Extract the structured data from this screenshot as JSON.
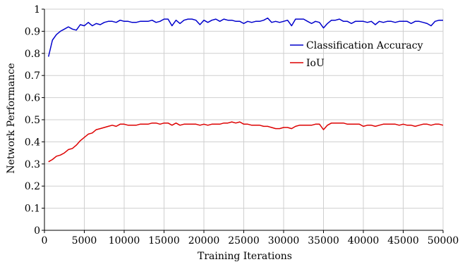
{
  "chart_data": {
    "type": "line",
    "xlabel": "Training Iterations",
    "ylabel": "Network Performance",
    "xlim": [
      0,
      50000
    ],
    "ylim": [
      0,
      1
    ],
    "xticks": [
      0,
      5000,
      10000,
      15000,
      20000,
      25000,
      30000,
      35000,
      40000,
      45000,
      50000
    ],
    "yticks": [
      0,
      0.1,
      0.2,
      0.3,
      0.4,
      0.5,
      0.6,
      0.7,
      0.8,
      0.9,
      1
    ],
    "xtick_labels": [
      "0",
      "5000",
      "10000",
      "15000",
      "20000",
      "25000",
      "30000",
      "35000",
      "40000",
      "45000",
      "50000"
    ],
    "ytick_labels": [
      "0",
      "0.1",
      "0.2",
      "0.3",
      "0.4",
      "0.5",
      "0.6",
      "0.7",
      "0.8",
      "0.9",
      "1"
    ],
    "grid": true,
    "legend_position": "top-right",
    "x": [
      500,
      1000,
      1500,
      2000,
      2500,
      3000,
      3500,
      4000,
      4500,
      5000,
      5500,
      6000,
      6500,
      7000,
      7500,
      8000,
      8500,
      9000,
      9500,
      10000,
      10500,
      11000,
      11500,
      12000,
      12500,
      13000,
      13500,
      14000,
      14500,
      15000,
      15500,
      16000,
      16500,
      17000,
      17500,
      18000,
      18500,
      19000,
      19500,
      20000,
      20500,
      21000,
      21500,
      22000,
      22500,
      23000,
      23500,
      24000,
      24500,
      25000,
      25500,
      26000,
      26500,
      27000,
      27500,
      28000,
      28500,
      29000,
      29500,
      30000,
      30500,
      31000,
      31500,
      32000,
      32500,
      33000,
      33500,
      34000,
      34500,
      35000,
      35500,
      36000,
      36500,
      37000,
      37500,
      38000,
      38500,
      39000,
      39500,
      40000,
      40500,
      41000,
      41500,
      42000,
      42500,
      43000,
      43500,
      44000,
      44500,
      45000,
      45500,
      46000,
      46500,
      47000,
      47500,
      48000,
      48500,
      49000,
      49500,
      50000
    ],
    "series": [
      {
        "name": "Classification Accuracy",
        "color": "#0000cc",
        "values": [
          0.785,
          0.86,
          0.885,
          0.9,
          0.91,
          0.92,
          0.91,
          0.905,
          0.93,
          0.925,
          0.94,
          0.925,
          0.935,
          0.93,
          0.94,
          0.945,
          0.945,
          0.94,
          0.95,
          0.945,
          0.945,
          0.94,
          0.94,
          0.945,
          0.945,
          0.945,
          0.95,
          0.94,
          0.945,
          0.955,
          0.955,
          0.925,
          0.95,
          0.935,
          0.95,
          0.955,
          0.955,
          0.95,
          0.93,
          0.95,
          0.94,
          0.95,
          0.955,
          0.945,
          0.955,
          0.95,
          0.95,
          0.945,
          0.945,
          0.935,
          0.945,
          0.94,
          0.945,
          0.945,
          0.95,
          0.96,
          0.94,
          0.945,
          0.94,
          0.945,
          0.95,
          0.925,
          0.955,
          0.955,
          0.955,
          0.945,
          0.935,
          0.945,
          0.94,
          0.915,
          0.935,
          0.95,
          0.95,
          0.955,
          0.945,
          0.945,
          0.935,
          0.945,
          0.945,
          0.945,
          0.94,
          0.945,
          0.93,
          0.945,
          0.94,
          0.945,
          0.945,
          0.94,
          0.945,
          0.945,
          0.945,
          0.935,
          0.945,
          0.945,
          0.94,
          0.935,
          0.925,
          0.945,
          0.95,
          0.95
        ]
      },
      {
        "name": "IoU",
        "color": "#dd0000",
        "values": [
          0.31,
          0.32,
          0.335,
          0.34,
          0.35,
          0.365,
          0.37,
          0.385,
          0.405,
          0.42,
          0.435,
          0.44,
          0.455,
          0.46,
          0.465,
          0.47,
          0.475,
          0.47,
          0.48,
          0.48,
          0.475,
          0.475,
          0.475,
          0.48,
          0.48,
          0.48,
          0.485,
          0.485,
          0.48,
          0.485,
          0.485,
          0.475,
          0.485,
          0.475,
          0.48,
          0.48,
          0.48,
          0.48,
          0.475,
          0.48,
          0.475,
          0.48,
          0.48,
          0.48,
          0.485,
          0.485,
          0.49,
          0.485,
          0.49,
          0.48,
          0.48,
          0.475,
          0.475,
          0.475,
          0.47,
          0.47,
          0.465,
          0.46,
          0.46,
          0.465,
          0.465,
          0.46,
          0.47,
          0.475,
          0.475,
          0.475,
          0.475,
          0.48,
          0.48,
          0.455,
          0.475,
          0.485,
          0.485,
          0.485,
          0.485,
          0.48,
          0.48,
          0.48,
          0.48,
          0.47,
          0.475,
          0.475,
          0.47,
          0.475,
          0.48,
          0.48,
          0.48,
          0.48,
          0.475,
          0.48,
          0.475,
          0.475,
          0.47,
          0.475,
          0.48,
          0.48,
          0.475,
          0.48,
          0.48,
          0.475
        ]
      }
    ]
  }
}
